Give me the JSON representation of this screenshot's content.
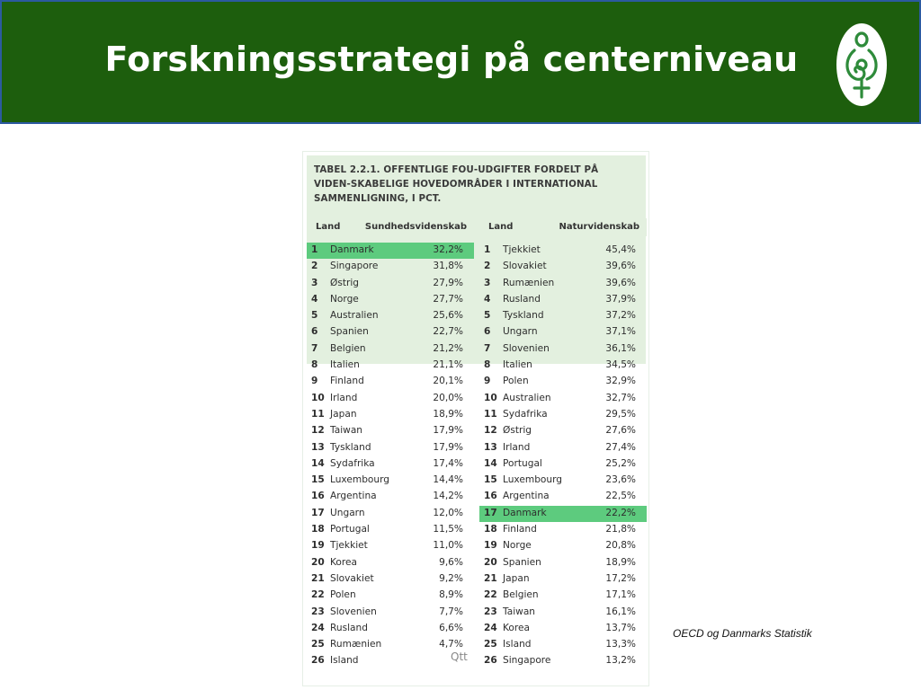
{
  "slide": {
    "title": "Forskningsstrategi på centerniveau",
    "logo": "organization-logo-icon",
    "source": "OECD og Danmarks Statistik"
  },
  "table": {
    "caption": "TABEL 2.2.1. OFFENTLIGE FOU-UDGIFTER FORDELT PÅ VIDEN-SKABELIGE HOVEDOMRÅDER I INTERNATIONAL SAMMENLIGNING, I PCT.",
    "stamp": "Qtt",
    "highlight_color": "#5dcb7e",
    "left": {
      "col_land": "Land",
      "col_field": "Sundhedsvidenskab",
      "rows": [
        {
          "rank": "1",
          "land": "Danmark",
          "value": "32,2%",
          "highlight": true
        },
        {
          "rank": "2",
          "land": "Singapore",
          "value": "31,8%"
        },
        {
          "rank": "3",
          "land": "Østrig",
          "value": "27,9%"
        },
        {
          "rank": "4",
          "land": "Norge",
          "value": "27,7%"
        },
        {
          "rank": "5",
          "land": "Australien",
          "value": "25,6%"
        },
        {
          "rank": "6",
          "land": "Spanien",
          "value": "22,7%"
        },
        {
          "rank": "7",
          "land": "Belgien",
          "value": "21,2%"
        },
        {
          "rank": "8",
          "land": "Italien",
          "value": "21,1%"
        },
        {
          "rank": "9",
          "land": "Finland",
          "value": "20,1%"
        },
        {
          "rank": "10",
          "land": "Irland",
          "value": "20,0%"
        },
        {
          "rank": "11",
          "land": "Japan",
          "value": "18,9%"
        },
        {
          "rank": "12",
          "land": "Taiwan",
          "value": "17,9%"
        },
        {
          "rank": "13",
          "land": "Tyskland",
          "value": "17,9%"
        },
        {
          "rank": "14",
          "land": "Sydafrika",
          "value": "17,4%"
        },
        {
          "rank": "15",
          "land": "Luxembourg",
          "value": "14,4%"
        },
        {
          "rank": "16",
          "land": "Argentina",
          "value": "14,2%"
        },
        {
          "rank": "17",
          "land": "Ungarn",
          "value": "12,0%"
        },
        {
          "rank": "18",
          "land": "Portugal",
          "value": "11,5%"
        },
        {
          "rank": "19",
          "land": "Tjekkiet",
          "value": "11,0%"
        },
        {
          "rank": "20",
          "land": "Korea",
          "value": "9,6%"
        },
        {
          "rank": "21",
          "land": "Slovakiet",
          "value": "9,2%"
        },
        {
          "rank": "22",
          "land": "Polen",
          "value": "8,9%"
        },
        {
          "rank": "23",
          "land": "Slovenien",
          "value": "7,7%"
        },
        {
          "rank": "24",
          "land": "Rusland",
          "value": "6,6%"
        },
        {
          "rank": "25",
          "land": "Rumænien",
          "value": "4,7%"
        },
        {
          "rank": "26",
          "land": "Island",
          "value": ""
        }
      ]
    },
    "right": {
      "col_land": "Land",
      "col_field": "Naturvidenskab",
      "rows": [
        {
          "rank": "1",
          "land": "Tjekkiet",
          "value": "45,4%"
        },
        {
          "rank": "2",
          "land": "Slovakiet",
          "value": "39,6%"
        },
        {
          "rank": "3",
          "land": "Rumænien",
          "value": "39,6%"
        },
        {
          "rank": "4",
          "land": "Rusland",
          "value": "37,9%"
        },
        {
          "rank": "5",
          "land": "Tyskland",
          "value": "37,2%"
        },
        {
          "rank": "6",
          "land": "Ungarn",
          "value": "37,1%"
        },
        {
          "rank": "7",
          "land": "Slovenien",
          "value": "36,1%"
        },
        {
          "rank": "8",
          "land": "Italien",
          "value": "34,5%"
        },
        {
          "rank": "9",
          "land": "Polen",
          "value": "32,9%"
        },
        {
          "rank": "10",
          "land": "Australien",
          "value": "32,7%"
        },
        {
          "rank": "11",
          "land": "Sydafrika",
          "value": "29,5%"
        },
        {
          "rank": "12",
          "land": "Østrig",
          "value": "27,6%"
        },
        {
          "rank": "13",
          "land": "Irland",
          "value": "27,4%"
        },
        {
          "rank": "14",
          "land": "Portugal",
          "value": "25,2%"
        },
        {
          "rank": "15",
          "land": "Luxembourg",
          "value": "23,6%"
        },
        {
          "rank": "16",
          "land": "Argentina",
          "value": "22,5%"
        },
        {
          "rank": "17",
          "land": "Danmark",
          "value": "22,2%",
          "highlight": true
        },
        {
          "rank": "18",
          "land": "Finland",
          "value": "21,8%"
        },
        {
          "rank": "19",
          "land": "Norge",
          "value": "20,8%"
        },
        {
          "rank": "20",
          "land": "Spanien",
          "value": "18,9%"
        },
        {
          "rank": "21",
          "land": "Japan",
          "value": "17,2%"
        },
        {
          "rank": "22",
          "land": "Belgien",
          "value": "17,1%"
        },
        {
          "rank": "23",
          "land": "Taiwan",
          "value": "16,1%"
        },
        {
          "rank": "24",
          "land": "Korea",
          "value": "13,7%"
        },
        {
          "rank": "25",
          "land": "Island",
          "value": "13,3%"
        },
        {
          "rank": "26",
          "land": "Singapore",
          "value": "13,2%"
        }
      ]
    }
  }
}
